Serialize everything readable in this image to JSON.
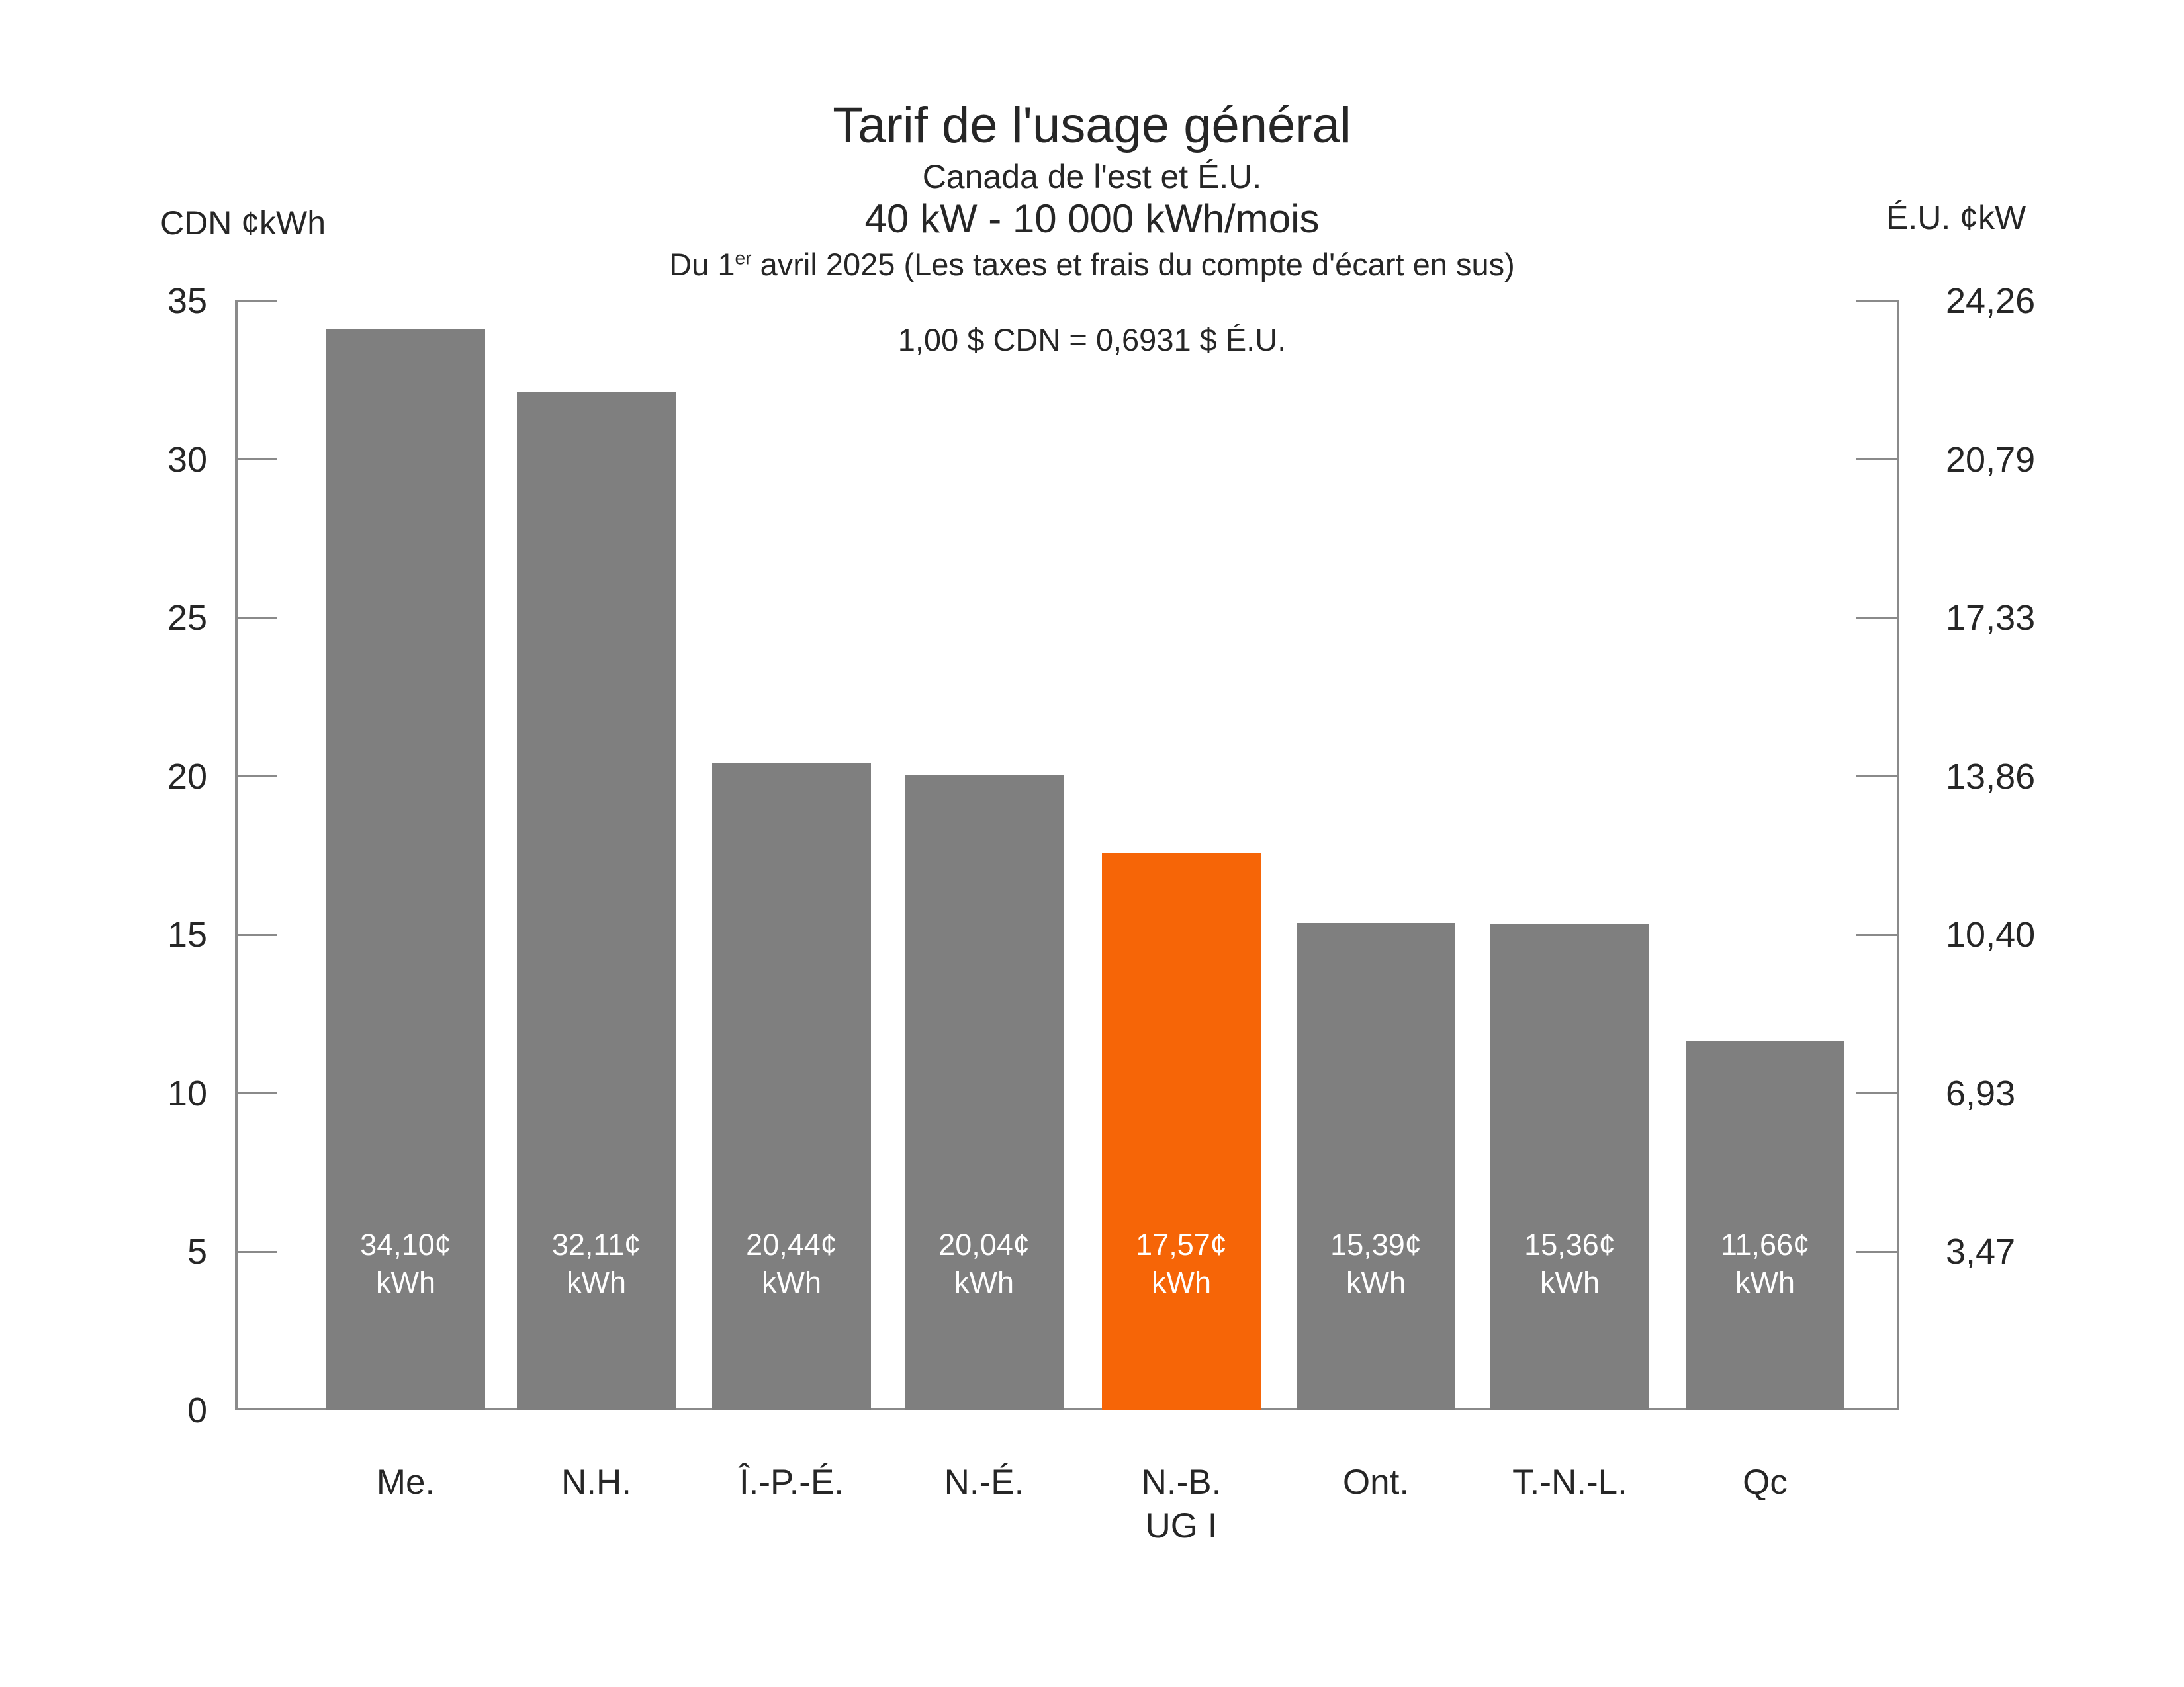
{
  "chart_data": {
    "type": "bar",
    "title": "Tarif de l'usage général",
    "subtitle_region": "Canada de l'est et É.U.",
    "subtitle_spec": "40 kW - 10 000 kWh/mois",
    "date_note": {
      "prefix": "Du 1",
      "superscript": "er",
      "suffix": " avril 2025 (Les taxes et frais du compte d'écart en sus)"
    },
    "exchange_note": "1,00 $ CDN = 0,6931 $ É.U.",
    "left_axis": {
      "label": "CDN ¢kWh",
      "min": 0,
      "max": 35,
      "ticks": [
        35,
        30,
        25,
        20,
        15,
        10,
        5,
        0
      ]
    },
    "right_axis": {
      "label": "É.U. ¢kW",
      "ticks": [
        {
          "label": "24,26",
          "cdn_value": 35
        },
        {
          "label": "20,79",
          "cdn_value": 30
        },
        {
          "label": "17,33",
          "cdn_value": 25
        },
        {
          "label": "13,86",
          "cdn_value": 20
        },
        {
          "label": "10,40",
          "cdn_value": 15
        },
        {
          "label": "6,93",
          "cdn_value": 10
        },
        {
          "label": "3,47",
          "cdn_value": 5
        }
      ]
    },
    "bars": [
      {
        "category": "Me.",
        "value": 34.1,
        "label_value": "34,10¢",
        "label_unit": "kWh",
        "highlight": false
      },
      {
        "category": "N.H.",
        "value": 32.11,
        "label_value": "32,11¢",
        "label_unit": "kWh",
        "highlight": false
      },
      {
        "category": "Î.-P.-É.",
        "value": 20.44,
        "label_value": "20,44¢",
        "label_unit": "kWh",
        "highlight": false
      },
      {
        "category": "N.-É.",
        "value": 20.04,
        "label_value": "20,04¢",
        "label_unit": "kWh",
        "highlight": false
      },
      {
        "category": "N.-B.",
        "category_line2": "UG I",
        "value": 17.57,
        "label_value": "17,57¢",
        "label_unit": "kWh",
        "highlight": true
      },
      {
        "category": "Ont.",
        "value": 15.39,
        "label_value": "15,39¢",
        "label_unit": "kWh",
        "highlight": false
      },
      {
        "category": "T.-N.-L.",
        "value": 15.36,
        "label_value": "15,36¢",
        "label_unit": "kWh",
        "highlight": false
      },
      {
        "category": "Qc",
        "value": 11.66,
        "label_value": "11,66¢",
        "label_unit": "kWh",
        "highlight": false
      }
    ],
    "colors": {
      "bar": "#7f7f7f",
      "highlight": "#f66507",
      "axis": "#8a8a8a",
      "text": "#262626",
      "bar_label_text": "#ffffff",
      "background": "#ffffff"
    },
    "legend": "none",
    "grid": "off"
  }
}
